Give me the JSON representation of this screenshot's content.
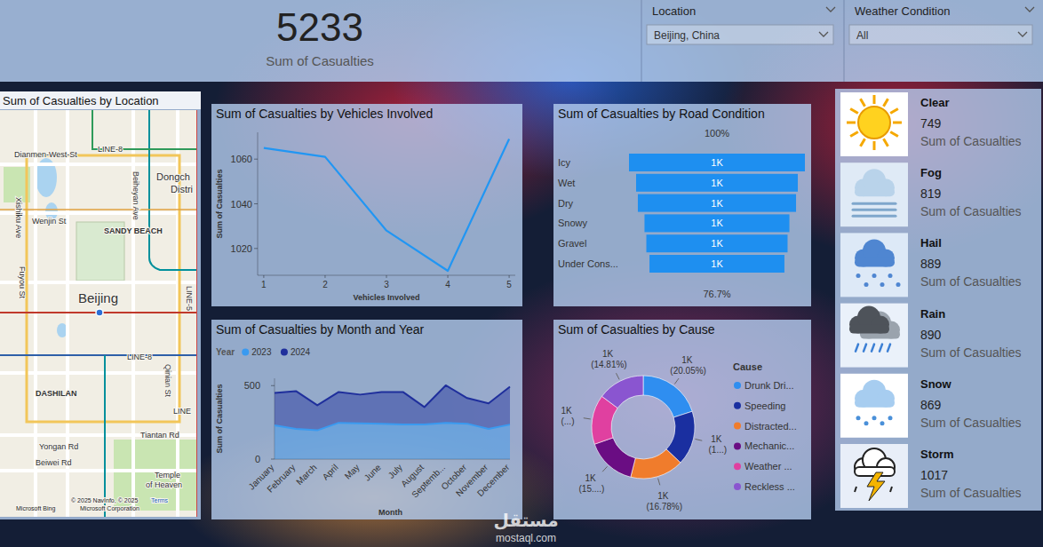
{
  "kpi": {
    "value": 5233,
    "label": "Sum of Casualties"
  },
  "slicers": [
    {
      "title": "Location",
      "selected": "Beijing, China"
    },
    {
      "title": "Weather Condition",
      "selected": "All"
    }
  ],
  "map": {
    "title": "Sum of Casualties by Location",
    "labels": [
      "LINE-8",
      "Dianmen-West-St",
      "Dongch",
      "Distri",
      "Xishiku Ave",
      "Beiheyan Ave",
      "SANDY BEACH",
      "Wenjin St",
      "Fuyou St",
      "Beijing",
      "LINE-5",
      "LINE-8",
      "DASHILAN",
      "Qinian St",
      "LINE",
      "Yongan Rd",
      "Tiantan Rd",
      "Beiwei Rd",
      "Temple",
      "of Heaven",
      "© 2025 NavInfo, © 2025",
      "Microsoft Corporation",
      "Terms",
      "Microsoft Bing"
    ]
  },
  "chart_data": [
    {
      "type": "line",
      "title": "Sum of Casualties by Vehicles Involved",
      "x": [
        1,
        2,
        3,
        4,
        5
      ],
      "values": [
        1065,
        1061,
        1028,
        1010,
        1069
      ],
      "color": "#2196f3",
      "xlim": [
        0.9,
        5.1
      ],
      "xticks": [
        1,
        2,
        3,
        4,
        5
      ],
      "ylim": [
        1008,
        1072
      ],
      "yticks": [
        1020,
        1040,
        1060
      ],
      "x_label": "Vehicles Involved",
      "y_label": "Sum of Casualties",
      "grid": false
    },
    {
      "type": "funnel",
      "title": "Sum of Casualties by Road Condition",
      "categories": [
        "Icy",
        "Wet",
        "Dry",
        "Snowy",
        "Gravel",
        "Under Cons..."
      ],
      "values": [
        1004,
        923,
        903,
        827,
        806,
        770
      ],
      "value_labels": [
        "1K",
        "1K",
        "1K",
        "1K",
        "1K",
        "1K"
      ],
      "data_labels": true,
      "color": "#1e8ff0",
      "annotations": [
        "100%",
        "76.7%"
      ]
    },
    {
      "type": "area",
      "title": "Sum of Casualties by Month and Year",
      "categories": [
        "January",
        "February",
        "March",
        "April",
        "May",
        "June",
        "July",
        "August",
        "Septemb...",
        "October",
        "November",
        "December"
      ],
      "series": [
        {
          "name": "2023",
          "color": "#3a9af0",
          "values": [
            229,
            205,
            196,
            247,
            244,
            241,
            235,
            235,
            247,
            241,
            205,
            235
          ]
        },
        {
          "name": "2024",
          "color": "#1f2f9c",
          "values": [
            222,
            258,
            170,
            210,
            195,
            216,
            222,
            119,
            255,
            174,
            174,
            258
          ]
        }
      ],
      "stacked": true,
      "ylim": [
        0,
        550
      ],
      "yticks": [
        0,
        500
      ],
      "x_label": "Month",
      "y_label": "Sum of Casualties",
      "legend_title": "Year",
      "legend": "top-left",
      "grid": false
    },
    {
      "type": "donut",
      "title": "Sum of Casualties by Cause",
      "categories": [
        "Drunk Dri...",
        "Speeding",
        "Distracted...",
        "Mechanic...",
        "Weather ...",
        "Reckless ..."
      ],
      "values": [
        1049,
        895,
        878,
        822,
        814,
        775
      ],
      "value_labels": [
        "1K (20.05%)",
        "1K (1...)",
        "1K (16.78%)",
        "1K (15....)",
        "1K (...)",
        "1K (14.81%)"
      ],
      "colors": [
        "#2f8ef0",
        "#1a2fa0",
        "#f07c2c",
        "#6a0d83",
        "#e040a0",
        "#8a55d0"
      ],
      "data_labels": true,
      "legend": "right",
      "legend_title": "Cause"
    }
  ],
  "weather_cards": [
    {
      "name": "Clear",
      "value": 749,
      "label": "Sum of Casualties"
    },
    {
      "name": "Fog",
      "value": 819,
      "label": "Sum of Casualties"
    },
    {
      "name": "Hail",
      "value": 889,
      "label": "Sum of Casualties"
    },
    {
      "name": "Rain",
      "value": 890,
      "label": "Sum of Casualties"
    },
    {
      "name": "Snow",
      "value": 869,
      "label": "Sum of Casualties"
    },
    {
      "name": "Storm",
      "value": 1017,
      "label": "Sum of Casualties"
    }
  ],
  "watermark": {
    "arabic": "مستقل",
    "latin": "mostaql.com"
  }
}
